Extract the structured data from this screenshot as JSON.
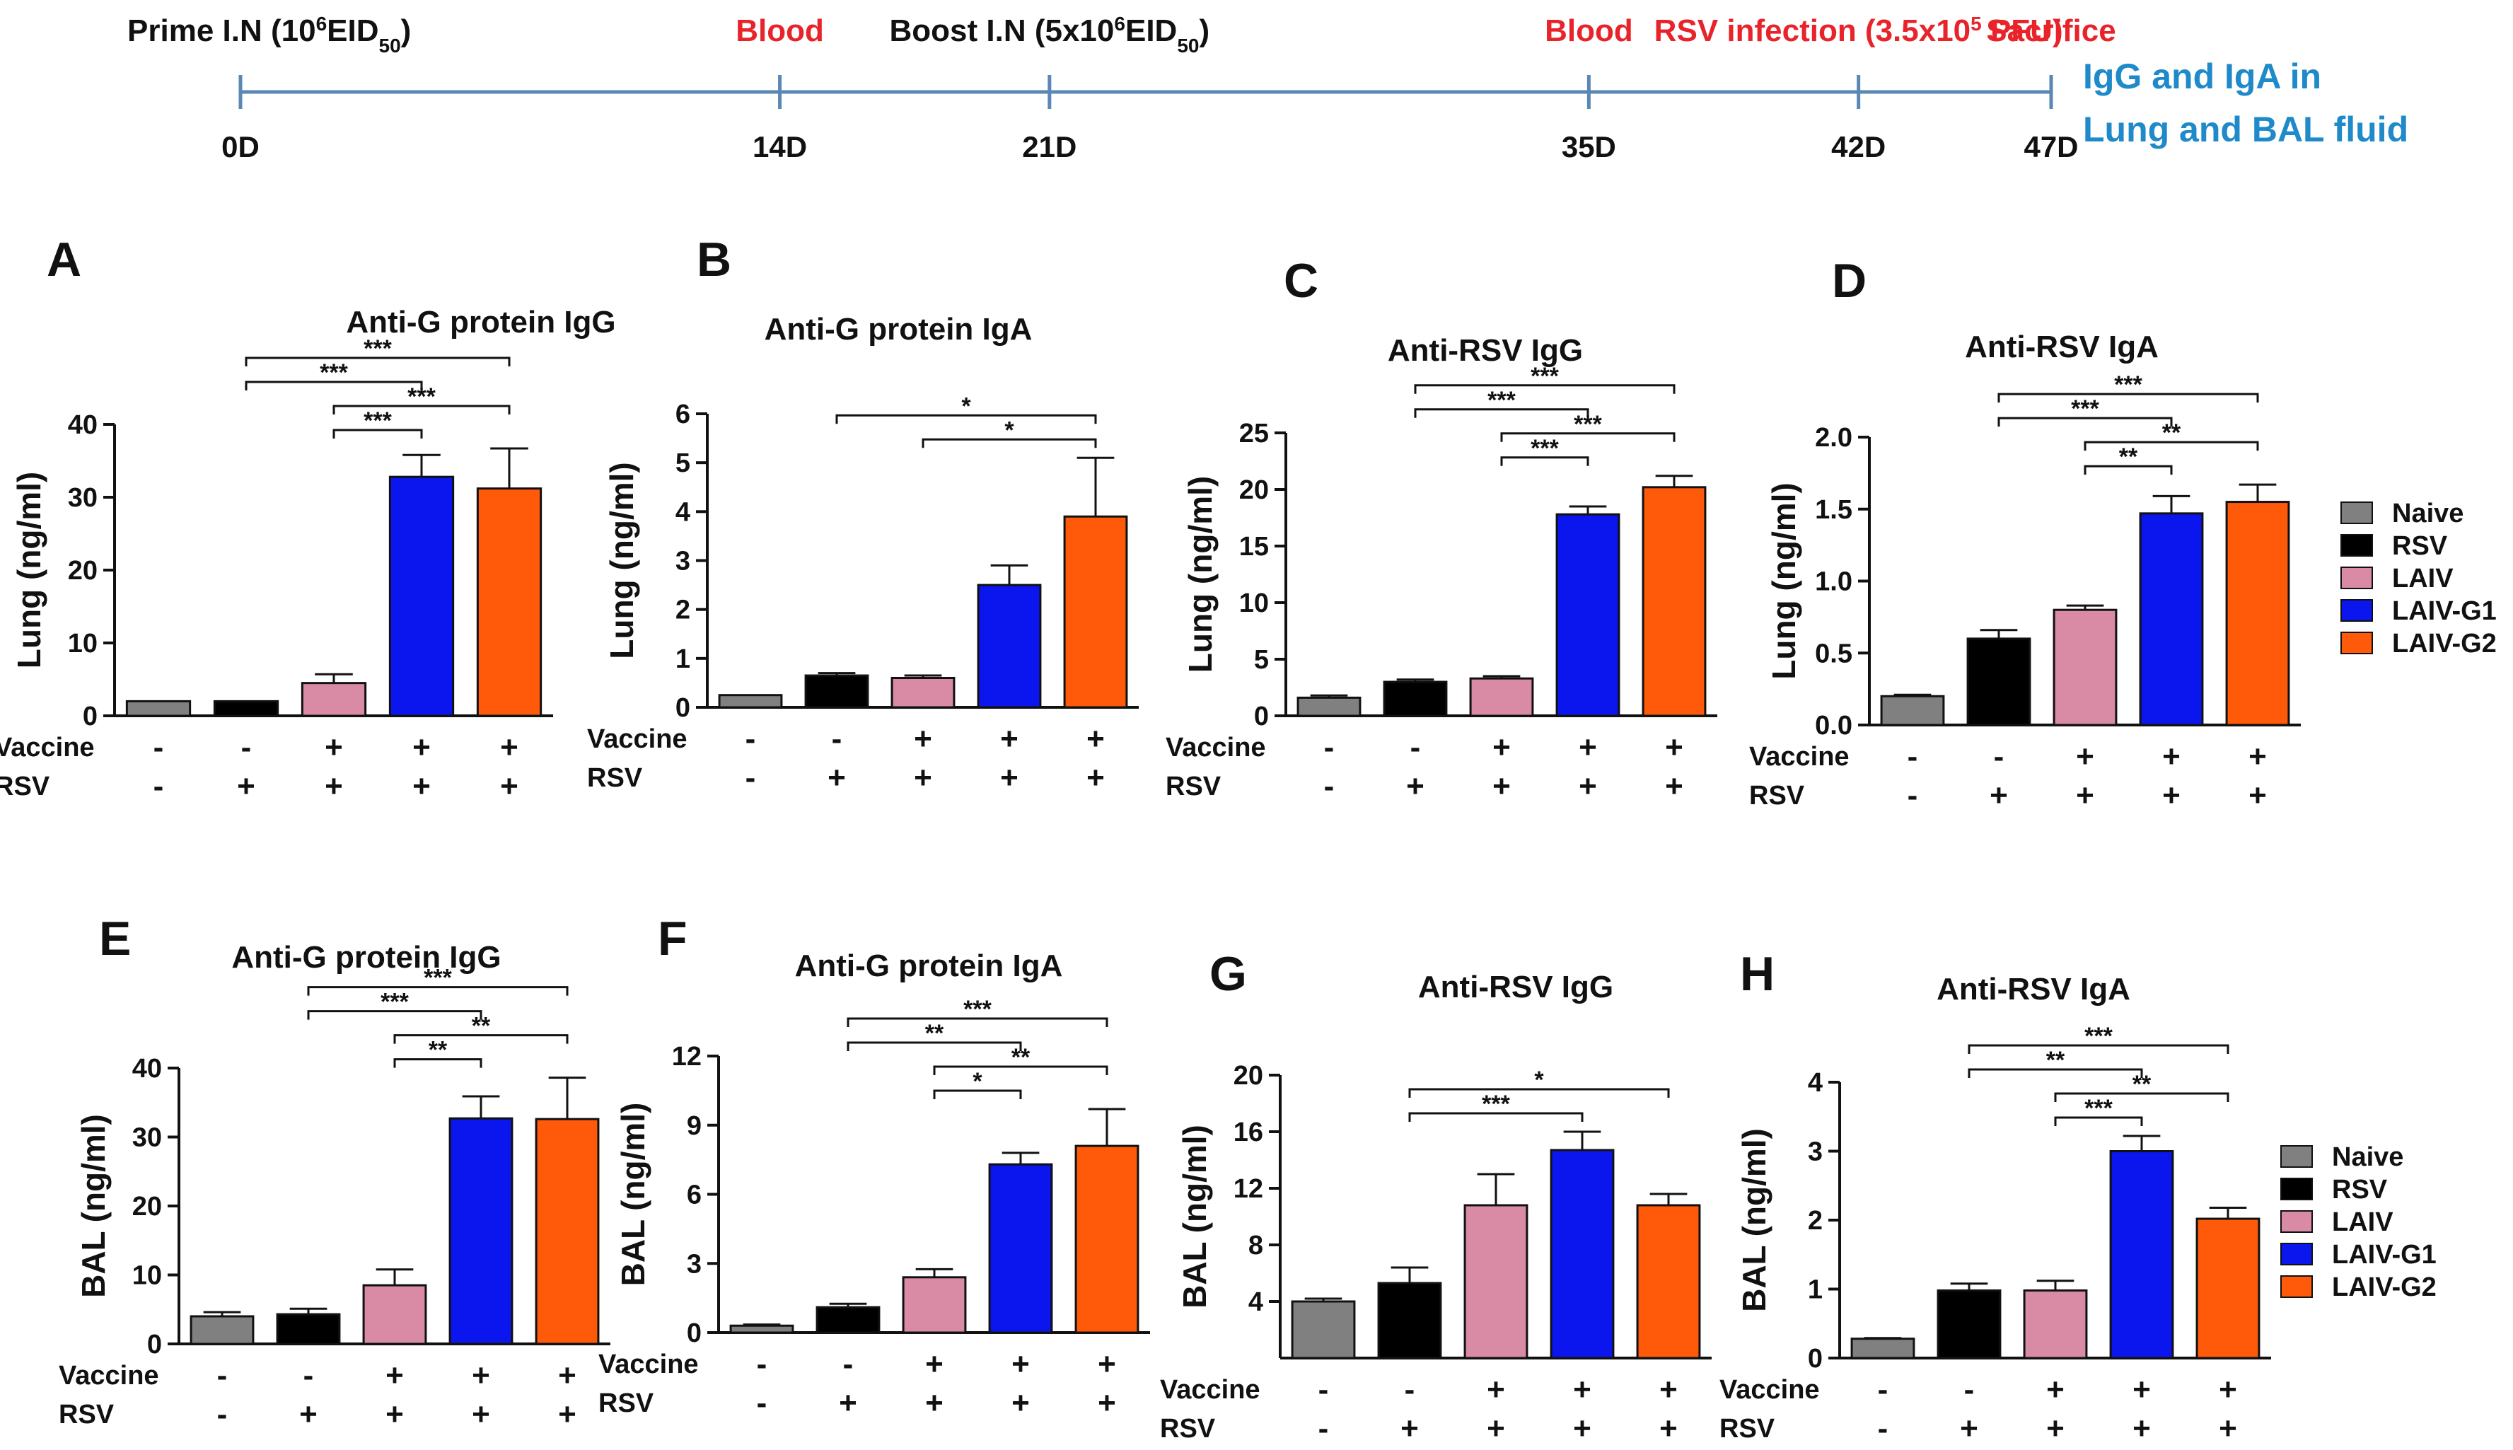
{
  "timeline": {
    "axis_label_suffix": "D",
    "events": [
      {
        "day": 0,
        "tick": "0D",
        "above": [
          [
            "Prime I.N (10",
            ""
          ],
          [
            "6",
            "sup"
          ],
          [
            "EID",
            ""
          ],
          [
            "50",
            "sub"
          ],
          [
            ")",
            ""
          ]
        ],
        "above_color": "#111111"
      },
      {
        "day": 14,
        "tick": "14D",
        "above": [
          [
            "Blood",
            ""
          ]
        ],
        "above_color": "#e8232a"
      },
      {
        "day": 21,
        "tick": "21D",
        "above": [
          [
            "Boost I.N (5x10",
            ""
          ],
          [
            "6",
            "sup"
          ],
          [
            "EID",
            ""
          ],
          [
            "50",
            "sub"
          ],
          [
            ")",
            ""
          ]
        ],
        "above_color": "#111111"
      },
      {
        "day": 35,
        "tick": "35D",
        "above": [
          [
            "Blood",
            ""
          ]
        ],
        "above_color": "#e8232a"
      },
      {
        "day": 42,
        "tick": "42D",
        "above": [
          [
            "RSV infection (3.5x10",
            ""
          ],
          [
            "5",
            "sup"
          ],
          [
            " PFU)",
            ""
          ]
        ],
        "above_color": "#e8232a"
      },
      {
        "day": 47,
        "tick": "47D",
        "above": [
          [
            "Sacrifice",
            ""
          ]
        ],
        "above_color": "#e8232a"
      }
    ],
    "endpoint_lines": [
      "IgG and IgA in",
      "Lung and BAL fluid"
    ],
    "line_color": "#5b87b5",
    "endpoint_color": "#1f8ac9"
  },
  "legend": {
    "entries": [
      {
        "name": "Naive",
        "color": "#808080"
      },
      {
        "name": "RSV",
        "color": "#000000"
      },
      {
        "name": "LAIV",
        "color": "#d98aa5"
      },
      {
        "name": "LAIV-G1",
        "color": "#0b16ee"
      },
      {
        "name": "LAIV-G2",
        "color": "#ff5a0a"
      }
    ]
  },
  "row_labels": {
    "vaccine": "Vaccine",
    "rsv": "RSV"
  },
  "chart_data": [
    {
      "panel": "A",
      "type": "bar",
      "title": "Anti-G protein IgG",
      "ylabel": "Lung (ng/ml)",
      "ylim": [
        0,
        40
      ],
      "yticks": [
        "0",
        "10",
        "20",
        "30",
        "40"
      ],
      "categories": [
        "Naive",
        "RSV",
        "LAIV",
        "LAIV-G1",
        "LAIV-G2"
      ],
      "values": [
        2,
        2,
        4.5,
        32.8,
        31.2
      ],
      "errors": [
        0,
        0,
        1.2,
        3.0,
        5.5
      ],
      "vaccine": [
        "-",
        "-",
        "+",
        "+",
        "+"
      ],
      "rsv": [
        "-",
        "+",
        "+",
        "+",
        "+"
      ],
      "significance": [
        {
          "from": 1,
          "to": 4,
          "label": "***"
        },
        {
          "from": 1,
          "to": 3,
          "label": "***"
        },
        {
          "from": 2,
          "to": 4,
          "label": "***"
        },
        {
          "from": 2,
          "to": 3,
          "label": "***"
        }
      ]
    },
    {
      "panel": "B",
      "type": "bar",
      "title": "Anti-G protein IgA",
      "ylabel": "Lung (ng/ml)",
      "ylim": [
        0,
        6
      ],
      "yticks": [
        "0",
        "1",
        "2",
        "3",
        "4",
        "5",
        "6"
      ],
      "categories": [
        "Naive",
        "RSV",
        "LAIV",
        "LAIV-G1",
        "LAIV-G2"
      ],
      "values": [
        0.25,
        0.65,
        0.6,
        2.5,
        3.9
      ],
      "errors": [
        0,
        0.05,
        0.05,
        0.4,
        1.2
      ],
      "vaccine": [
        "-",
        "-",
        "+",
        "+",
        "+"
      ],
      "rsv": [
        "-",
        "+",
        "+",
        "+",
        "+"
      ],
      "significance": [
        {
          "from": 1,
          "to": 4,
          "label": "*"
        },
        {
          "from": 2,
          "to": 4,
          "label": "*"
        }
      ]
    },
    {
      "panel": "C",
      "type": "bar",
      "title": "Anti-RSV IgG",
      "ylabel": "Lung (ng/ml)",
      "ylim": [
        0,
        25
      ],
      "yticks": [
        "0",
        "5",
        "10",
        "15",
        "20",
        "25"
      ],
      "categories": [
        "Naive",
        "RSV",
        "LAIV",
        "LAIV-G1",
        "LAIV-G2"
      ],
      "values": [
        1.6,
        3.0,
        3.3,
        17.8,
        20.2
      ],
      "errors": [
        0.2,
        0.2,
        0.2,
        0.7,
        1.0
      ],
      "vaccine": [
        "-",
        "-",
        "+",
        "+",
        "+"
      ],
      "rsv": [
        "-",
        "+",
        "+",
        "+",
        "+"
      ],
      "significance": [
        {
          "from": 1,
          "to": 4,
          "label": "***"
        },
        {
          "from": 1,
          "to": 3,
          "label": "***"
        },
        {
          "from": 2,
          "to": 4,
          "label": "***"
        },
        {
          "from": 2,
          "to": 3,
          "label": "***"
        }
      ]
    },
    {
      "panel": "D",
      "type": "bar",
      "title": "Anti-RSV IgA",
      "ylabel": "Lung (ng/ml)",
      "ylim": [
        0,
        2.0
      ],
      "yticks": [
        "0.0",
        "0.5",
        "1.0",
        "1.5",
        "2.0"
      ],
      "categories": [
        "Naive",
        "RSV",
        "LAIV",
        "LAIV-G1",
        "LAIV-G2"
      ],
      "values": [
        0.2,
        0.6,
        0.8,
        1.47,
        1.55
      ],
      "errors": [
        0.01,
        0.06,
        0.03,
        0.12,
        0.12
      ],
      "vaccine": [
        "-",
        "-",
        "+",
        "+",
        "+"
      ],
      "rsv": [
        "-",
        "+",
        "+",
        "+",
        "+"
      ],
      "significance": [
        {
          "from": 1,
          "to": 4,
          "label": "***"
        },
        {
          "from": 1,
          "to": 3,
          "label": "***"
        },
        {
          "from": 2,
          "to": 4,
          "label": "**"
        },
        {
          "from": 2,
          "to": 3,
          "label": "**"
        }
      ]
    },
    {
      "panel": "E",
      "type": "bar",
      "title": "Anti-G protein IgG",
      "ylabel": "BAL (ng/ml)",
      "ylim": [
        0,
        40
      ],
      "yticks": [
        "0",
        "10",
        "20",
        "30",
        "40"
      ],
      "categories": [
        "Naive",
        "RSV",
        "LAIV",
        "LAIV-G1",
        "LAIV-G2"
      ],
      "values": [
        4,
        4.3,
        8.5,
        32.7,
        32.6
      ],
      "errors": [
        0.6,
        0.8,
        2.3,
        3.2,
        6.0
      ],
      "vaccine": [
        "-",
        "-",
        "+",
        "+",
        "+"
      ],
      "rsv": [
        "-",
        "+",
        "+",
        "+",
        "+"
      ],
      "significance": [
        {
          "from": 1,
          "to": 4,
          "label": "***"
        },
        {
          "from": 1,
          "to": 3,
          "label": "***"
        },
        {
          "from": 2,
          "to": 4,
          "label": "**"
        },
        {
          "from": 2,
          "to": 3,
          "label": "**"
        }
      ]
    },
    {
      "panel": "F",
      "type": "bar",
      "title": "Anti-G protein IgA",
      "ylabel": "BAL (ng/ml)",
      "ylim": [
        0,
        12
      ],
      "yticks": [
        "0",
        "3",
        "6",
        "9",
        "12"
      ],
      "categories": [
        "Naive",
        "RSV",
        "LAIV",
        "LAIV-G1",
        "LAIV-G2"
      ],
      "values": [
        0.3,
        1.1,
        2.4,
        7.3,
        8.1
      ],
      "errors": [
        0.05,
        0.15,
        0.35,
        0.5,
        1.6
      ],
      "vaccine": [
        "-",
        "-",
        "+",
        "+",
        "+"
      ],
      "rsv": [
        "-",
        "+",
        "+",
        "+",
        "+"
      ],
      "significance": [
        {
          "from": 1,
          "to": 4,
          "label": "***"
        },
        {
          "from": 1,
          "to": 3,
          "label": "**"
        },
        {
          "from": 2,
          "to": 4,
          "label": "**"
        },
        {
          "from": 2,
          "to": 3,
          "label": "*"
        }
      ]
    },
    {
      "panel": "G",
      "type": "bar",
      "title": "Anti-RSV IgG",
      "ylabel": "BAL (ng/ml)",
      "ylim": [
        0,
        20
      ],
      "yticks": [
        "4",
        "8",
        "12",
        "16",
        "20"
      ],
      "categories": [
        "Naive",
        "RSV",
        "LAIV",
        "LAIV-G1",
        "LAIV-G2"
      ],
      "values": [
        4.0,
        5.3,
        10.8,
        14.7,
        10.8
      ],
      "errors": [
        0.2,
        1.1,
        2.2,
        1.3,
        0.8
      ],
      "vaccine": [
        "-",
        "-",
        "+",
        "+",
        "+"
      ],
      "rsv": [
        "-",
        "+",
        "+",
        "+",
        "+"
      ],
      "significance": [
        {
          "from": 1,
          "to": 4,
          "label": "*"
        },
        {
          "from": 1,
          "to": 3,
          "label": "***"
        }
      ]
    },
    {
      "panel": "H",
      "type": "bar",
      "title": "Anti-RSV IgA",
      "ylabel": "BAL (ng/ml)",
      "ylim": [
        0,
        4
      ],
      "yticks": [
        "0",
        "1",
        "2",
        "3",
        "4"
      ],
      "categories": [
        "Naive",
        "RSV",
        "LAIV",
        "LAIV-G1",
        "LAIV-G2"
      ],
      "values": [
        0.28,
        0.98,
        0.98,
        3.0,
        2.02
      ],
      "errors": [
        0.01,
        0.1,
        0.14,
        0.22,
        0.16
      ],
      "vaccine": [
        "-",
        "-",
        "+",
        "+",
        "+"
      ],
      "rsv": [
        "-",
        "+",
        "+",
        "+",
        "+"
      ],
      "significance": [
        {
          "from": 1,
          "to": 4,
          "label": "***"
        },
        {
          "from": 1,
          "to": 3,
          "label": "**"
        },
        {
          "from": 2,
          "to": 4,
          "label": "**"
        },
        {
          "from": 2,
          "to": 3,
          "label": "***"
        }
      ]
    }
  ]
}
